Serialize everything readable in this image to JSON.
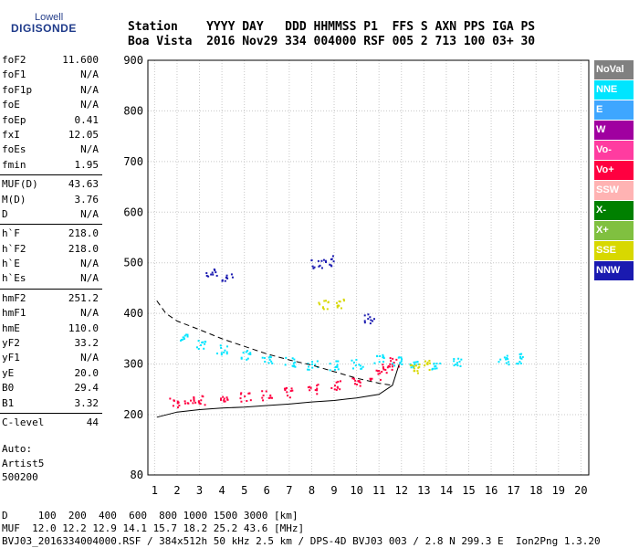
{
  "logo": {
    "top": "Lowell",
    "main": "DIGISONDE"
  },
  "header": {
    "line1": "Station    YYYY DAY   DDD HHMMSS P1  FFS S AXN PPS IGA PS",
    "line2": "Boa Vista  2016 Nov29 334 004000 RSF 005 2 713 100 03+ 30"
  },
  "params": {
    "group1": [
      {
        "label": "foF2",
        "value": "11.600"
      },
      {
        "label": "foF1",
        "value": "N/A"
      },
      {
        "label": "foF1p",
        "value": "N/A"
      },
      {
        "label": "foE",
        "value": "N/A"
      },
      {
        "label": "foEp",
        "value": "0.41"
      },
      {
        "label": "fxI",
        "value": "12.05"
      },
      {
        "label": "foEs",
        "value": "N/A"
      },
      {
        "label": "fmin",
        "value": "1.95"
      }
    ],
    "group2": [
      {
        "label": "MUF(D)",
        "value": "43.63"
      },
      {
        "label": "M(D)",
        "value": "3.76"
      },
      {
        "label": "D",
        "value": "N/A"
      }
    ],
    "group3": [
      {
        "label": "h`F",
        "value": "218.0"
      },
      {
        "label": "h`F2",
        "value": "218.0"
      },
      {
        "label": "h`E",
        "value": "N/A"
      },
      {
        "label": "h`Es",
        "value": "N/A"
      }
    ],
    "group4": [
      {
        "label": "hmF2",
        "value": "251.2"
      },
      {
        "label": "hmF1",
        "value": "N/A"
      },
      {
        "label": "hmE",
        "value": "110.0"
      },
      {
        "label": "yF2",
        "value": "33.2"
      },
      {
        "label": "yF1",
        "value": "N/A"
      },
      {
        "label": "yE",
        "value": "20.0"
      },
      {
        "label": "B0",
        "value": "29.4"
      },
      {
        "label": "B1",
        "value": "3.32"
      }
    ],
    "group5": [
      {
        "label": "C-level",
        "value": "44"
      }
    ]
  },
  "auto": {
    "line1": "Auto:",
    "line2": "Artist5",
    "line3": "500200"
  },
  "legend": [
    {
      "label": "NoVal",
      "color": "#808080"
    },
    {
      "label": "NNE",
      "color": "#00e5ff"
    },
    {
      "label": "E",
      "color": "#3ea6ff"
    },
    {
      "label": "W",
      "color": "#a000a0"
    },
    {
      "label": "Vo-",
      "color": "#ff3ca0"
    },
    {
      "label": "Vo+",
      "color": "#ff0040"
    },
    {
      "label": "SSW",
      "color": "#ffb3b3"
    },
    {
      "label": "X-",
      "color": "#008000"
    },
    {
      "label": "X+",
      "color": "#80c040"
    },
    {
      "label": "SSE",
      "color": "#d8d800"
    },
    {
      "label": "NNW",
      "color": "#1a1ab0"
    }
  ],
  "chart_data": {
    "type": "scatter",
    "xlim": [
      1,
      20
    ],
    "ylim": [
      80,
      900
    ],
    "x_ticks": [
      "1",
      "2",
      "3",
      "4",
      "5",
      "6",
      "7",
      "8",
      "9",
      "10",
      "11",
      "12",
      "13",
      "14",
      "15",
      "16",
      "17",
      "18",
      "19",
      "20"
    ],
    "y_ticks": [
      "80",
      "200",
      "300",
      "400",
      "500",
      "600",
      "700",
      "800",
      "900"
    ],
    "grid": true,
    "series": [
      {
        "name": "Vo+",
        "color": "#ff0040",
        "points": [
          [
            1.9,
            225
          ],
          [
            2.5,
            228
          ],
          [
            3,
            230
          ],
          [
            4,
            233
          ],
          [
            5,
            236
          ],
          [
            6,
            240
          ],
          [
            7,
            245
          ],
          [
            8,
            252
          ],
          [
            9,
            258
          ],
          [
            10,
            268
          ],
          [
            10.8,
            280
          ],
          [
            11.3,
            292
          ],
          [
            11.6,
            305
          ]
        ]
      },
      {
        "name": "NNE",
        "color": "#00e5ff",
        "points": [
          [
            2.2,
            350
          ],
          [
            3,
            340
          ],
          [
            4,
            330
          ],
          [
            5,
            320
          ],
          [
            6,
            312
          ],
          [
            7,
            305
          ],
          [
            8,
            300
          ],
          [
            9,
            298
          ],
          [
            10,
            302
          ],
          [
            11,
            310
          ],
          [
            11.8,
            308
          ],
          [
            12.5,
            300
          ],
          [
            13.5,
            300
          ],
          [
            14.5,
            305
          ],
          [
            16.5,
            310
          ],
          [
            17.2,
            312
          ]
        ]
      },
      {
        "name": "NNW",
        "color": "#1a1ab0",
        "points": [
          [
            3.5,
            480
          ],
          [
            4.2,
            470
          ],
          [
            8.2,
            500
          ],
          [
            8.7,
            505
          ],
          [
            10.5,
            390
          ]
        ]
      },
      {
        "name": "SSE",
        "color": "#d8d800",
        "points": [
          [
            8.5,
            420
          ],
          [
            9.3,
            422
          ],
          [
            12.5,
            290
          ],
          [
            13,
            300
          ]
        ]
      }
    ],
    "curves": [
      {
        "name": "lower-profile",
        "style": "solid",
        "points": [
          [
            1.1,
            195
          ],
          [
            2,
            205
          ],
          [
            3,
            210
          ],
          [
            4,
            213
          ],
          [
            5,
            215
          ],
          [
            6,
            218
          ],
          [
            7,
            221
          ],
          [
            8,
            225
          ],
          [
            9,
            228
          ],
          [
            10,
            233
          ],
          [
            11,
            240
          ],
          [
            11.6,
            258
          ],
          [
            11.9,
            300
          ]
        ]
      },
      {
        "name": "upper-profile",
        "style": "dashed",
        "points": [
          [
            1.1,
            425
          ],
          [
            1.5,
            400
          ],
          [
            2,
            385
          ],
          [
            3,
            368
          ],
          [
            4,
            350
          ],
          [
            5,
            335
          ],
          [
            6,
            320
          ],
          [
            7,
            308
          ],
          [
            8,
            298
          ],
          [
            9,
            285
          ],
          [
            10,
            272
          ],
          [
            11,
            262
          ],
          [
            11.6,
            258
          ]
        ]
      }
    ]
  },
  "footer": {
    "line1": "D     100  200  400  600  800 1000 1500 3000 [km]",
    "line2": "MUF  12.0 12.2 12.9 14.1 15.7 18.2 25.2 43.6 [MHz]",
    "line3": "BVJ03_2016334004000.RSF / 384x512h 50 kHz 2.5 km / DPS-4D BVJ03 003 / 2.8 N 299.3 E  Ion2Png 1.3.20"
  }
}
